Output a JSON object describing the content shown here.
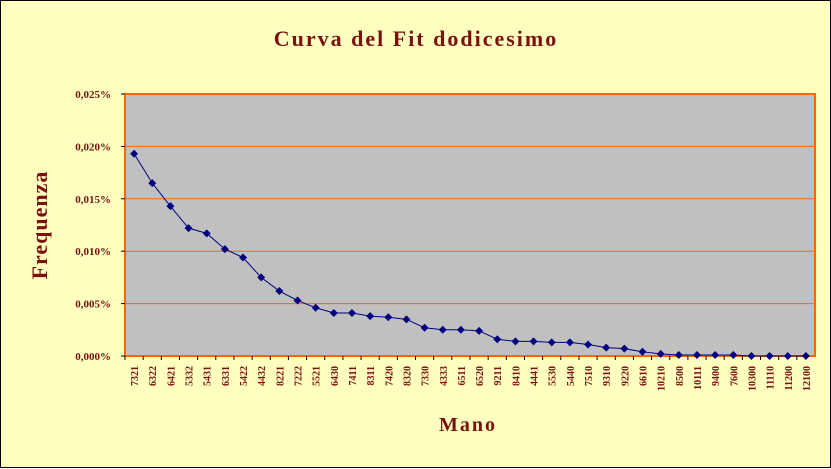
{
  "chart_data": {
    "type": "line",
    "title": "Curva del Fit dodicesimo",
    "xlabel": "Mano",
    "ylabel": "Frequenza",
    "ylim": [
      0,
      0.025
    ],
    "yticks": [
      "0,000%",
      "0,005%",
      "0,010%",
      "0,015%",
      "0,020%",
      "0,025%"
    ],
    "grid": true,
    "colors": {
      "background": "#ffffc0",
      "plot_area": "#c0c0c0",
      "grid": "#ff6600",
      "plot_border": "#ff6600",
      "series": "#000080",
      "text": "#7b1010"
    },
    "categories": [
      "7321",
      "6322",
      "6421",
      "5332",
      "5431",
      "6331",
      "5422",
      "4432",
      "8221",
      "7222",
      "5521",
      "6430",
      "7411",
      "8311",
      "7420",
      "8320",
      "7330",
      "4333",
      "6511",
      "6520",
      "9211",
      "8410",
      "4441",
      "5530",
      "5440",
      "7510",
      "9310",
      "9220",
      "6610",
      "10210",
      "8500",
      "10111",
      "9400",
      "7600",
      "10300",
      "11110",
      "11200",
      "12100"
    ],
    "values": [
      0.0193,
      0.0165,
      0.0143,
      0.0122,
      0.0117,
      0.0102,
      0.0094,
      0.0075,
      0.0062,
      0.0053,
      0.0046,
      0.0041,
      0.0041,
      0.0038,
      0.0037,
      0.0035,
      0.0027,
      0.0025,
      0.0025,
      0.0024,
      0.0016,
      0.0014,
      0.0014,
      0.0013,
      0.0013,
      0.0011,
      0.0008,
      0.0007,
      0.0004,
      0.0002,
      0.0001,
      0.0001,
      0.0001,
      0.0001,
      0.0,
      0.0,
      0.0,
      0.0
    ]
  }
}
